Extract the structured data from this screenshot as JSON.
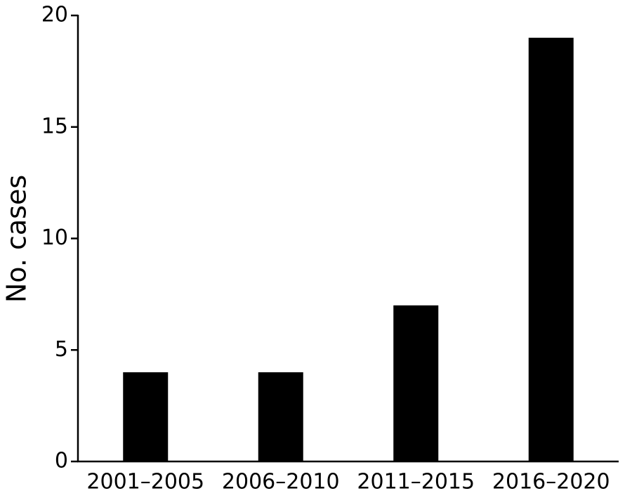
{
  "chart_data": {
    "type": "bar",
    "y_label": "No. cases",
    "categories": [
      "2001–2005",
      "2006–2010",
      "2011–2015",
      "2016–2020"
    ],
    "values": [
      4,
      4,
      7,
      19
    ],
    "color": "#000000",
    "ylim": [
      0,
      20
    ],
    "yticks": [
      0,
      5,
      10,
      15,
      20
    ],
    "grid": false
  }
}
